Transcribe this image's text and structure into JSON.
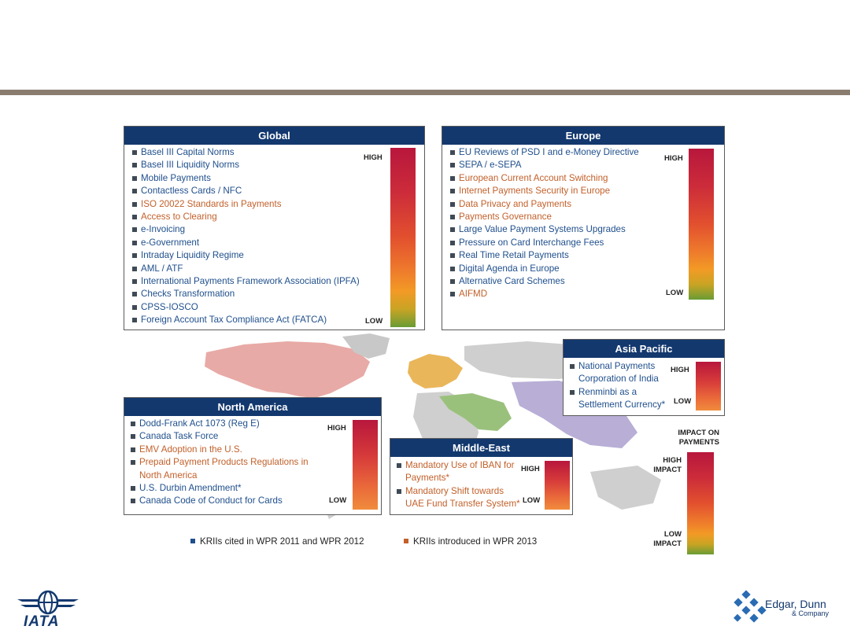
{
  "colors": {
    "header_bg": "#13386e",
    "cited_blue": "#1f4f8c",
    "introduced_orange": "#c2602a",
    "rule": "#8a7d70"
  },
  "panels": {
    "global": {
      "title": "Global",
      "high": "HIGH",
      "low": "LOW",
      "items": [
        {
          "text": "Basel III Capital Norms",
          "kind": "cited"
        },
        {
          "text": "Basel III Liquidity Norms",
          "kind": "cited"
        },
        {
          "text": "Mobile Payments",
          "kind": "cited"
        },
        {
          "text": "Contactless Cards / NFC",
          "kind": "cited"
        },
        {
          "text": "ISO 20022 Standards in Payments",
          "kind": "introduced"
        },
        {
          "text": "Access to Clearing",
          "kind": "introduced"
        },
        {
          "text": "e-Invoicing",
          "kind": "cited"
        },
        {
          "text": "e-Government",
          "kind": "cited"
        },
        {
          "text": "Intraday Liquidity Regime",
          "kind": "cited"
        },
        {
          "text": "AML / ATF",
          "kind": "cited"
        },
        {
          "text": "International Payments Framework Association (IPFA)",
          "kind": "cited"
        },
        {
          "text": "Checks Transformation",
          "kind": "cited"
        },
        {
          "text": "CPSS-IOSCO",
          "kind": "cited"
        },
        {
          "text": "Foreign Account Tax Compliance Act (FATCA)",
          "kind": "cited"
        }
      ]
    },
    "europe": {
      "title": "Europe",
      "high": "HIGH",
      "low": "LOW",
      "items": [
        {
          "text": "EU Reviews of PSD I and e-Money Directive",
          "kind": "cited"
        },
        {
          "text": "SEPA / e-SEPA",
          "kind": "cited"
        },
        {
          "text": "European Current Account Switching",
          "kind": "introduced"
        },
        {
          "text": "Internet Payments Security in Europe",
          "kind": "introduced"
        },
        {
          "text": "Data Privacy and Payments",
          "kind": "introduced"
        },
        {
          "text": "Payments Governance",
          "kind": "introduced"
        },
        {
          "text": "Large Value Payment Systems Upgrades",
          "kind": "cited"
        },
        {
          "text": "Pressure on Card Interchange Fees",
          "kind": "cited"
        },
        {
          "text": "Real Time Retail Payments",
          "kind": "cited"
        },
        {
          "text": "Digital Agenda in Europe",
          "kind": "cited"
        },
        {
          "text": "Alternative Card Schemes",
          "kind": "cited"
        },
        {
          "text": "AIFMD",
          "kind": "introduced"
        }
      ]
    },
    "asia_pacific": {
      "title": "Asia Pacific",
      "high": "HIGH",
      "low": "LOW",
      "items": [
        {
          "text": "National Payments Corporation of India",
          "kind": "cited"
        },
        {
          "text": "Renminbi as a Settlement Currency*",
          "kind": "cited"
        }
      ]
    },
    "north_america": {
      "title": "North America",
      "high": "HIGH",
      "low": "LOW",
      "items": [
        {
          "text": "Dodd-Frank Act 1073 (Reg E)",
          "kind": "cited"
        },
        {
          "text": "Canada Task Force",
          "kind": "cited"
        },
        {
          "text": "EMV Adoption in the U.S.",
          "kind": "introduced"
        },
        {
          "text": "Prepaid Payment Products Regulations in North America",
          "kind": "introduced"
        },
        {
          "text": "U.S. Durbin Amendment*",
          "kind": "cited"
        },
        {
          "text": "Canada Code of Conduct for Cards",
          "kind": "cited"
        }
      ]
    },
    "middle_east": {
      "title": "Middle-East",
      "high": "HIGH",
      "low": "LOW",
      "items": [
        {
          "text": "Mandatory Use of IBAN for Payments*",
          "kind": "introduced"
        },
        {
          "text": "Mandatory Shift towards UAE Fund Transfer System*",
          "kind": "introduced"
        }
      ]
    }
  },
  "impact_scale": {
    "title": "IMPACT ON PAYMENTS",
    "high": "HIGH IMPACT",
    "low": "LOW IMPACT"
  },
  "legend": {
    "cited": "KRIIs cited in WPR 2011 and WPR 2012",
    "introduced": "KRIIs introduced in WPR 2013"
  },
  "footer": {
    "iata": "IATA",
    "edgar_dunn": "Edgar, Dunn",
    "edgar_dunn_sub": "& Company"
  }
}
